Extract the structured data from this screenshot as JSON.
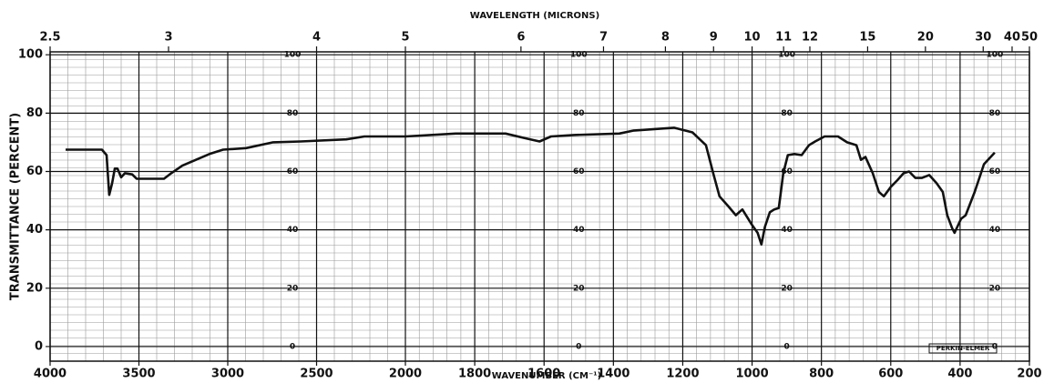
{
  "chart_data": {
    "type": "line",
    "title": "WAVELENGTH (MICRONS)",
    "x_label": "WAVENUMBER (CM⁻¹)",
    "y_label": "TRANSMITTANCE (PERCENT)",
    "brand": "PERKIN-ELMER",
    "color": "#111111",
    "grid": true,
    "xlim": [
      4000,
      200
    ],
    "x_scale_change": 2000,
    "xticks": [
      4000,
      3500,
      3000,
      2500,
      2000,
      1800,
      1600,
      1400,
      1200,
      1000,
      800,
      600,
      400,
      200
    ],
    "top_ticks": [
      2.5,
      3,
      4,
      5,
      6,
      7,
      8,
      9,
      10,
      11,
      12,
      15,
      20,
      30,
      40,
      50
    ],
    "ylim": [
      -5,
      101
    ],
    "yticks": [
      0,
      20,
      40,
      60,
      80,
      100
    ],
    "x": [
      3913,
      3708,
      3682,
      3667,
      3651,
      3636,
      3621,
      3600,
      3579,
      3538,
      3513,
      3359,
      3318,
      3256,
      3103,
      3026,
      2897,
      2744,
      2590,
      2333,
      2231,
      2000,
      1855,
      1711,
      1658,
      1613,
      1580,
      1514,
      1383,
      1343,
      1225,
      1172,
      1133,
      1112,
      1094,
      1068,
      1047,
      1028,
      1002,
      984,
      973,
      963,
      949,
      936,
      923,
      910,
      897,
      878,
      857,
      836,
      818,
      791,
      752,
      726,
      699,
      686,
      673,
      652,
      634,
      620,
      600,
      581,
      563,
      547,
      529,
      510,
      489,
      468,
      450,
      437,
      423,
      416,
      397,
      384,
      358,
      331,
      300
    ],
    "values": [
      67.5,
      67.5,
      65.6,
      52,
      56,
      61,
      61,
      58,
      59.4,
      59,
      57.5,
      57.5,
      59.4,
      62,
      66,
      67.5,
      68,
      70,
      70.3,
      71,
      72,
      72,
      73,
      73,
      71.5,
      70.3,
      72,
      72.5,
      73,
      74,
      75,
      73.4,
      69,
      59.4,
      51.5,
      48,
      45,
      47,
      42,
      39,
      35,
      41,
      46,
      47,
      47.5,
      59.4,
      65.6,
      66,
      65.6,
      69,
      70.3,
      72,
      72,
      70,
      69,
      64,
      65,
      59.4,
      53,
      51.5,
      54.7,
      57,
      59.4,
      60,
      57.8,
      57.8,
      58.8,
      56,
      53,
      45,
      40.6,
      39,
      43.8,
      45,
      53,
      62.5,
      66.5
    ]
  }
}
